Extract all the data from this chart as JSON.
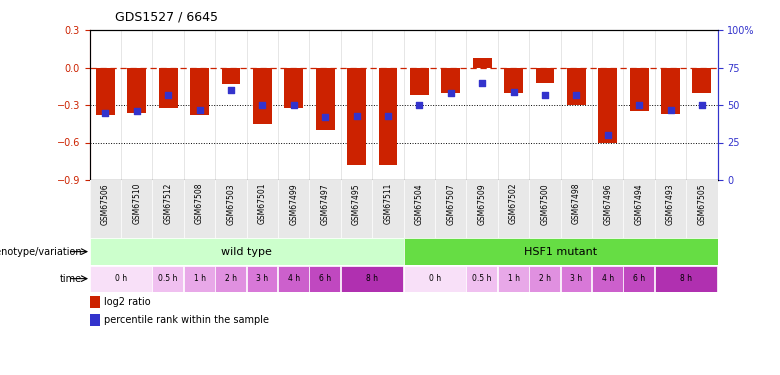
{
  "title": "GDS1527 / 6645",
  "samples": [
    "GSM67506",
    "GSM67510",
    "GSM67512",
    "GSM67508",
    "GSM67503",
    "GSM67501",
    "GSM67499",
    "GSM67497",
    "GSM67495",
    "GSM67511",
    "GSM67504",
    "GSM67507",
    "GSM67509",
    "GSM67502",
    "GSM67500",
    "GSM67498",
    "GSM67496",
    "GSM67494",
    "GSM67493",
    "GSM67505"
  ],
  "log2_ratio": [
    -0.38,
    -0.36,
    -0.32,
    -0.38,
    -0.13,
    -0.45,
    -0.32,
    -0.5,
    -0.78,
    -0.78,
    -0.22,
    -0.2,
    0.08,
    -0.2,
    -0.12,
    -0.3,
    -0.6,
    -0.35,
    -0.37,
    -0.2
  ],
  "percentile": [
    45,
    46,
    57,
    47,
    60,
    50,
    50,
    42,
    43,
    43,
    50,
    58,
    65,
    59,
    57,
    57,
    30,
    50,
    47,
    50
  ],
  "bar_color": "#cc2200",
  "dot_color": "#3333cc",
  "ylim_left": [
    -0.9,
    0.3
  ],
  "ylim_right": [
    0,
    100
  ],
  "yticks_left": [
    -0.9,
    -0.6,
    -0.3,
    0.0,
    0.3
  ],
  "yticks_right": [
    0,
    25,
    50,
    75,
    100
  ],
  "ytick_labels_right": [
    "0",
    "25",
    "50",
    "75",
    "100%"
  ],
  "hline_y": 0.0,
  "dotted_lines": [
    -0.3,
    -0.6
  ],
  "genotype_labels": [
    "wild type",
    "HSF1 mutant"
  ],
  "genotype_colors": [
    "#ccffcc",
    "#66dd44"
  ],
  "wt_slots": [
    [
      "0 h",
      0,
      2
    ],
    [
      "0.5 h",
      2,
      3
    ],
    [
      "1 h",
      3,
      4
    ],
    [
      "2 h",
      4,
      5
    ],
    [
      "3 h",
      5,
      6
    ],
    [
      "4 h",
      6,
      7
    ],
    [
      "6 h",
      7,
      8
    ],
    [
      "8 h",
      8,
      10
    ]
  ],
  "mut_slots": [
    [
      "0 h",
      10,
      12
    ],
    [
      "0.5 h",
      12,
      13
    ],
    [
      "1 h",
      13,
      14
    ],
    [
      "2 h",
      14,
      15
    ],
    [
      "3 h",
      15,
      16
    ],
    [
      "4 h",
      16,
      17
    ],
    [
      "6 h",
      17,
      18
    ],
    [
      "8 h",
      18,
      20
    ]
  ],
  "time_color_map": {
    "0 h": "#f8e0f8",
    "0.5 h": "#f0c0f0",
    "1 h": "#e8a8e8",
    "2 h": "#e090e0",
    "3 h": "#d878d8",
    "4 h": "#cc60cc",
    "6 h": "#c048c0",
    "8 h": "#b030b0"
  },
  "legend_red": "log2 ratio",
  "legend_blue": "percentile rank within the sample",
  "background_color": "#ffffff",
  "n_samples": 20
}
